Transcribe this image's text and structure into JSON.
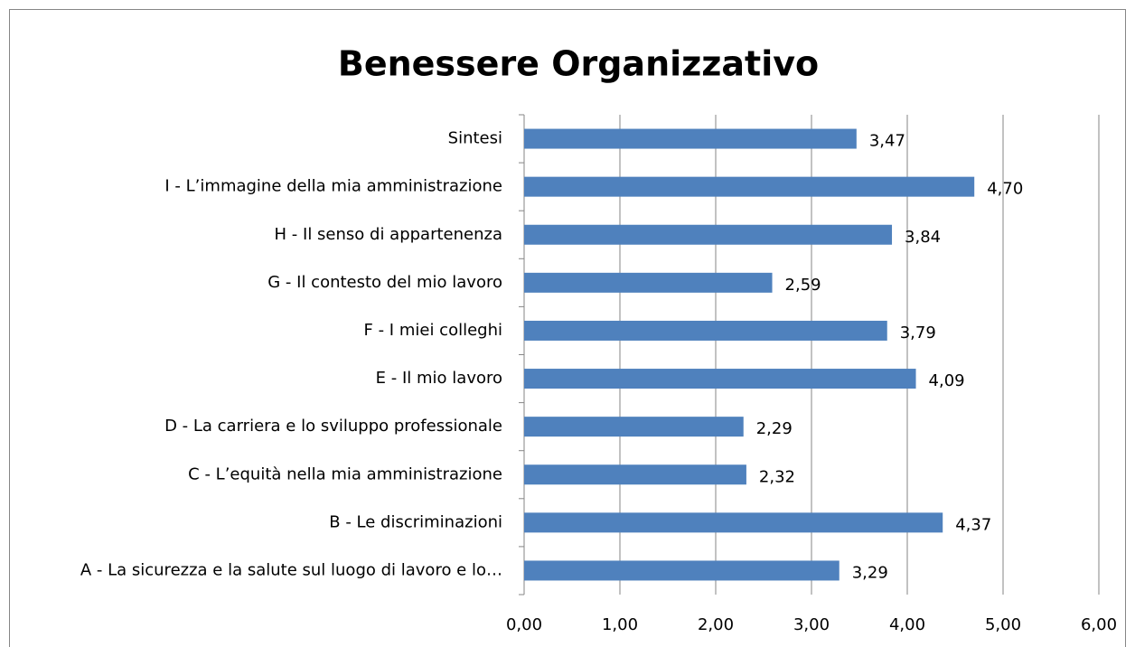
{
  "chart_data": {
    "type": "bar",
    "orientation": "horizontal",
    "title": "Benessere Organizzativo",
    "categories": [
      "Sintesi",
      "I - L’immagine della mia amministrazione",
      "H - Il senso di appartenenza",
      "G - Il contesto del mio lavoro",
      "F - I miei colleghi",
      "E - Il mio lavoro",
      "D - La carriera e lo sviluppo professionale",
      "C - L’equità nella mia amministrazione",
      "B - Le discriminazioni",
      "A - La sicurezza e la salute sul luogo di lavoro e lo…"
    ],
    "values": [
      3.47,
      4.7,
      3.84,
      2.59,
      3.79,
      4.09,
      2.29,
      2.32,
      4.37,
      3.29
    ],
    "value_labels": [
      "3,47",
      "4,70",
      "3,84",
      "2,59",
      "3,79",
      "4,09",
      "2,29",
      "2,32",
      "4,37",
      "3,29"
    ],
    "color": "#4f81bd",
    "xlim": [
      0,
      6
    ],
    "xticks": [
      {
        "value": 0,
        "label": "0,00"
      },
      {
        "value": 1,
        "label": "1,00"
      },
      {
        "value": 2,
        "label": "2,00"
      },
      {
        "value": 3,
        "label": "3,00"
      },
      {
        "value": 4,
        "label": "4,00"
      },
      {
        "value": 5,
        "label": "5,00"
      },
      {
        "value": 6,
        "label": "6,00"
      }
    ],
    "grid": true
  }
}
